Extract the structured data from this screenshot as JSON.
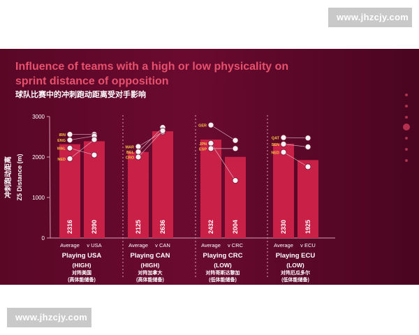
{
  "watermarks": {
    "top": "www.jhzcjy.com",
    "bottom": "www.jhzcjy.com"
  },
  "colors": {
    "background": "#5e0828",
    "bar": "#c92048",
    "title": "#e8506e",
    "text": "#ffffff",
    "connector": "#d9b3bf"
  },
  "chart_data": {
    "type": "bar",
    "title": "Influence of teams with a high or low physicality on sprint distance of opposition",
    "subtitle": "球队比赛中的冲刺跑动距离受对手影响",
    "ylabel_cn": "冲刺跑动距离",
    "ylabel": "Z5 Distance (m)",
    "ylim": [
      0,
      3000
    ],
    "yticks": [
      0,
      1000,
      2000,
      3000
    ],
    "groups": [
      {
        "label": "Playing USA",
        "level": "(HIGH)",
        "cn_line1": "对阵美国",
        "cn_line2": "(高体能储备)",
        "bars": [
          {
            "category": "Average",
            "value": 2316
          },
          {
            "category": "v USA",
            "value": 2390
          }
        ],
        "teams": [
          "IRN",
          "ENG",
          "WAL",
          "NED"
        ]
      },
      {
        "label": "Playing CAN",
        "level": "(HIGH)",
        "cn_line1": "对阵加拿大",
        "cn_line2": "(高体能储备)",
        "bars": [
          {
            "category": "Average",
            "value": 2125
          },
          {
            "category": "v CAN",
            "value": 2636
          }
        ],
        "teams": [
          "MAR",
          "BEL",
          "CRO"
        ]
      },
      {
        "label": "Playing CRC",
        "level": "(LOW)",
        "cn_line1": "对阵哥斯达黎加",
        "cn_line2": "(低体能储备)",
        "bars": [
          {
            "category": "Average",
            "value": 2432
          },
          {
            "category": "v CRC",
            "value": 2004
          }
        ],
        "teams": [
          "GER",
          "JPN",
          "ESP"
        ]
      },
      {
        "label": "Playing ECU",
        "level": "(LOW)",
        "cn_line1": "对阵厄瓜多尔",
        "cn_line2": "(低体能储备)",
        "bars": [
          {
            "category": "Average",
            "value": 2330
          },
          {
            "category": "v ECU",
            "value": 1925
          }
        ],
        "teams": [
          "QAT",
          "SEN",
          "NED"
        ]
      }
    ],
    "team_points": [
      {
        "team": "IRN",
        "group": 0,
        "avg": 2560,
        "vs": 2560
      },
      {
        "team": "ENG",
        "group": 0,
        "avg": 2420,
        "vs": 2520
      },
      {
        "team": "WAL",
        "group": 0,
        "avg": 2220,
        "vs": 2050
      },
      {
        "team": "NED",
        "group": 0,
        "avg": 1960,
        "vs": 2430
      },
      {
        "team": "MAR",
        "group": 1,
        "avg": 2260,
        "vs": 2620
      },
      {
        "team": "BEL",
        "group": 1,
        "avg": 2130,
        "vs": 2730
      },
      {
        "team": "CRO",
        "group": 1,
        "avg": 2000,
        "vs": 2650
      },
      {
        "team": "GER",
        "group": 2,
        "avg": 2790,
        "vs": 2410
      },
      {
        "team": "JPN",
        "group": 2,
        "avg": 2340,
        "vs": 1420
      },
      {
        "team": "ESP",
        "group": 2,
        "avg": 2210,
        "vs": 2210
      },
      {
        "team": "QAT",
        "group": 3,
        "avg": 2480,
        "vs": 2470
      },
      {
        "team": "SEN",
        "group": 3,
        "avg": 2320,
        "vs": 2250
      },
      {
        "team": "NED",
        "group": 3,
        "avg": 2120,
        "vs": 1760
      }
    ]
  }
}
